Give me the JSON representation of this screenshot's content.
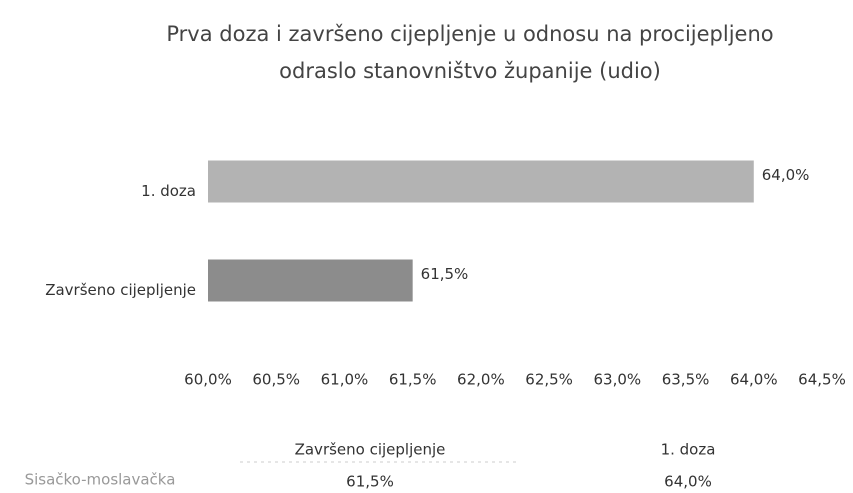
{
  "chart_data": {
    "type": "barh",
    "title": [
      "Prva doza i završeno cijepljenje u odnosu na procijepljeno",
      "odraslo stanovništvo županije (udio)"
    ],
    "categories": [
      "1. doza",
      "Završeno cijepljenje"
    ],
    "values": [
      64.0,
      61.5
    ],
    "value_labels": [
      "64,0%",
      "61,5%"
    ],
    "colors": [
      "#b3b3b3",
      "#8c8c8c"
    ],
    "xlim": [
      60,
      64.5
    ],
    "xticks": [
      {
        "value": 60,
        "label": "60,0%"
      },
      {
        "value": 60.5,
        "label": "60,5%"
      },
      {
        "value": 61,
        "label": "61,0%"
      },
      {
        "value": 61.5,
        "label": "61,5%"
      },
      {
        "value": 62,
        "label": "62,0%"
      },
      {
        "value": 62.5,
        "label": "62,5%"
      },
      {
        "value": 63,
        "label": "63,0%"
      },
      {
        "value": 63.5,
        "label": "63,5%"
      },
      {
        "value": 64,
        "label": "64,0%"
      },
      {
        "value": 64.5,
        "label": "64,5%"
      }
    ],
    "grid": false
  },
  "table": {
    "header": [
      "Završeno cijepljenje",
      "1. doza"
    ],
    "rows": [
      [
        "Sisačko-moslavačka",
        "61,5%",
        "64,0%"
      ]
    ]
  }
}
